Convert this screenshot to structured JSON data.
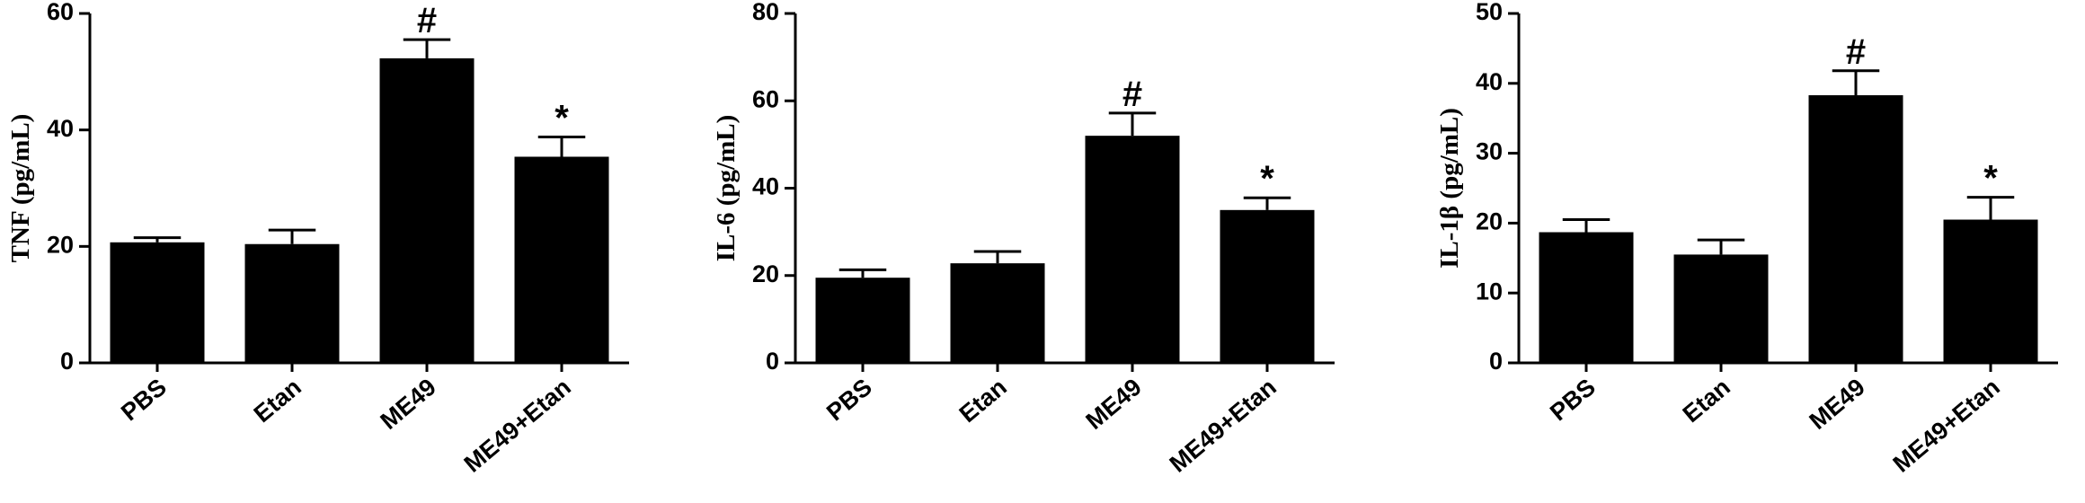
{
  "chart_data": [
    {
      "type": "bar",
      "y_label": "TNF (pg/mL)",
      "categories": [
        "PBS",
        "Etan",
        "ME49",
        "ME49+Etan"
      ],
      "values": [
        20.7,
        20.4,
        52.3,
        35.4
      ],
      "errors": [
        0.8,
        2.4,
        3.2,
        3.4
      ],
      "annotations": [
        null,
        null,
        "#",
        "*"
      ],
      "color": "#000000",
      "ylim": [
        0,
        60
      ],
      "yticks": [
        0,
        20,
        40,
        60
      ]
    },
    {
      "type": "bar",
      "y_label": "IL-6 (pg/mL)",
      "categories": [
        "PBS",
        "Etan",
        "ME49",
        "ME49+Etan"
      ],
      "values": [
        19.5,
        22.8,
        52,
        35
      ],
      "errors": [
        1.8,
        2.7,
        5.2,
        2.8
      ],
      "annotations": [
        null,
        null,
        "#",
        "*"
      ],
      "color": "#000000",
      "ylim": [
        0,
        80
      ],
      "yticks": [
        0,
        20,
        40,
        60,
        80
      ]
    },
    {
      "type": "bar",
      "y_label": "IL-1β (pg/mL)",
      "categories": [
        "PBS",
        "Etan",
        "ME49",
        "ME49+Etan"
      ],
      "values": [
        18.7,
        15.5,
        38.3,
        20.5
      ],
      "errors": [
        1.8,
        2.1,
        3.5,
        3.2
      ],
      "annotations": [
        null,
        null,
        "#",
        "*"
      ],
      "color": "#000000",
      "ylim": [
        0,
        50
      ],
      "yticks": [
        0,
        10,
        20,
        30,
        40,
        50
      ]
    }
  ]
}
